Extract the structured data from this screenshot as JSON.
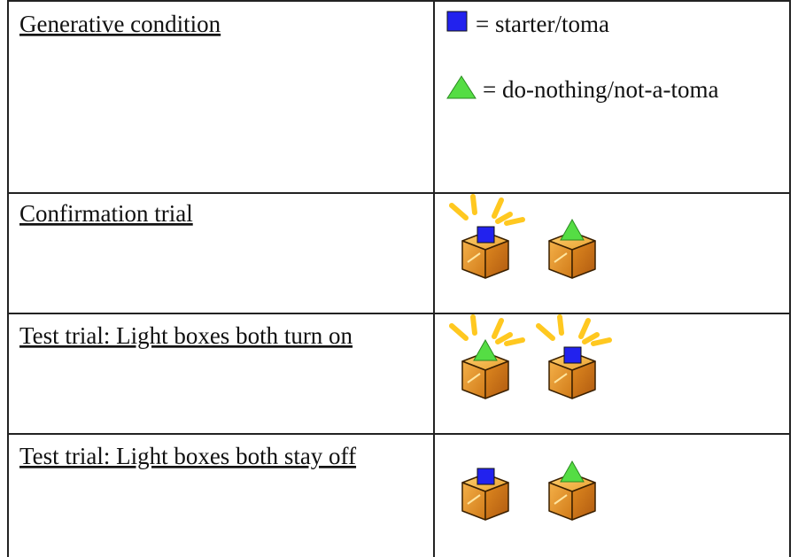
{
  "rows": [
    {
      "label": "Generative condition"
    },
    {
      "label": "Confirmation trial"
    },
    {
      "label": "Test trial: Light boxes both turn on"
    },
    {
      "label": "Test trial: Light boxes both stay off"
    }
  ],
  "legend": [
    "= starter/toma",
    "= do-nothing/not-a-toma"
  ]
}
